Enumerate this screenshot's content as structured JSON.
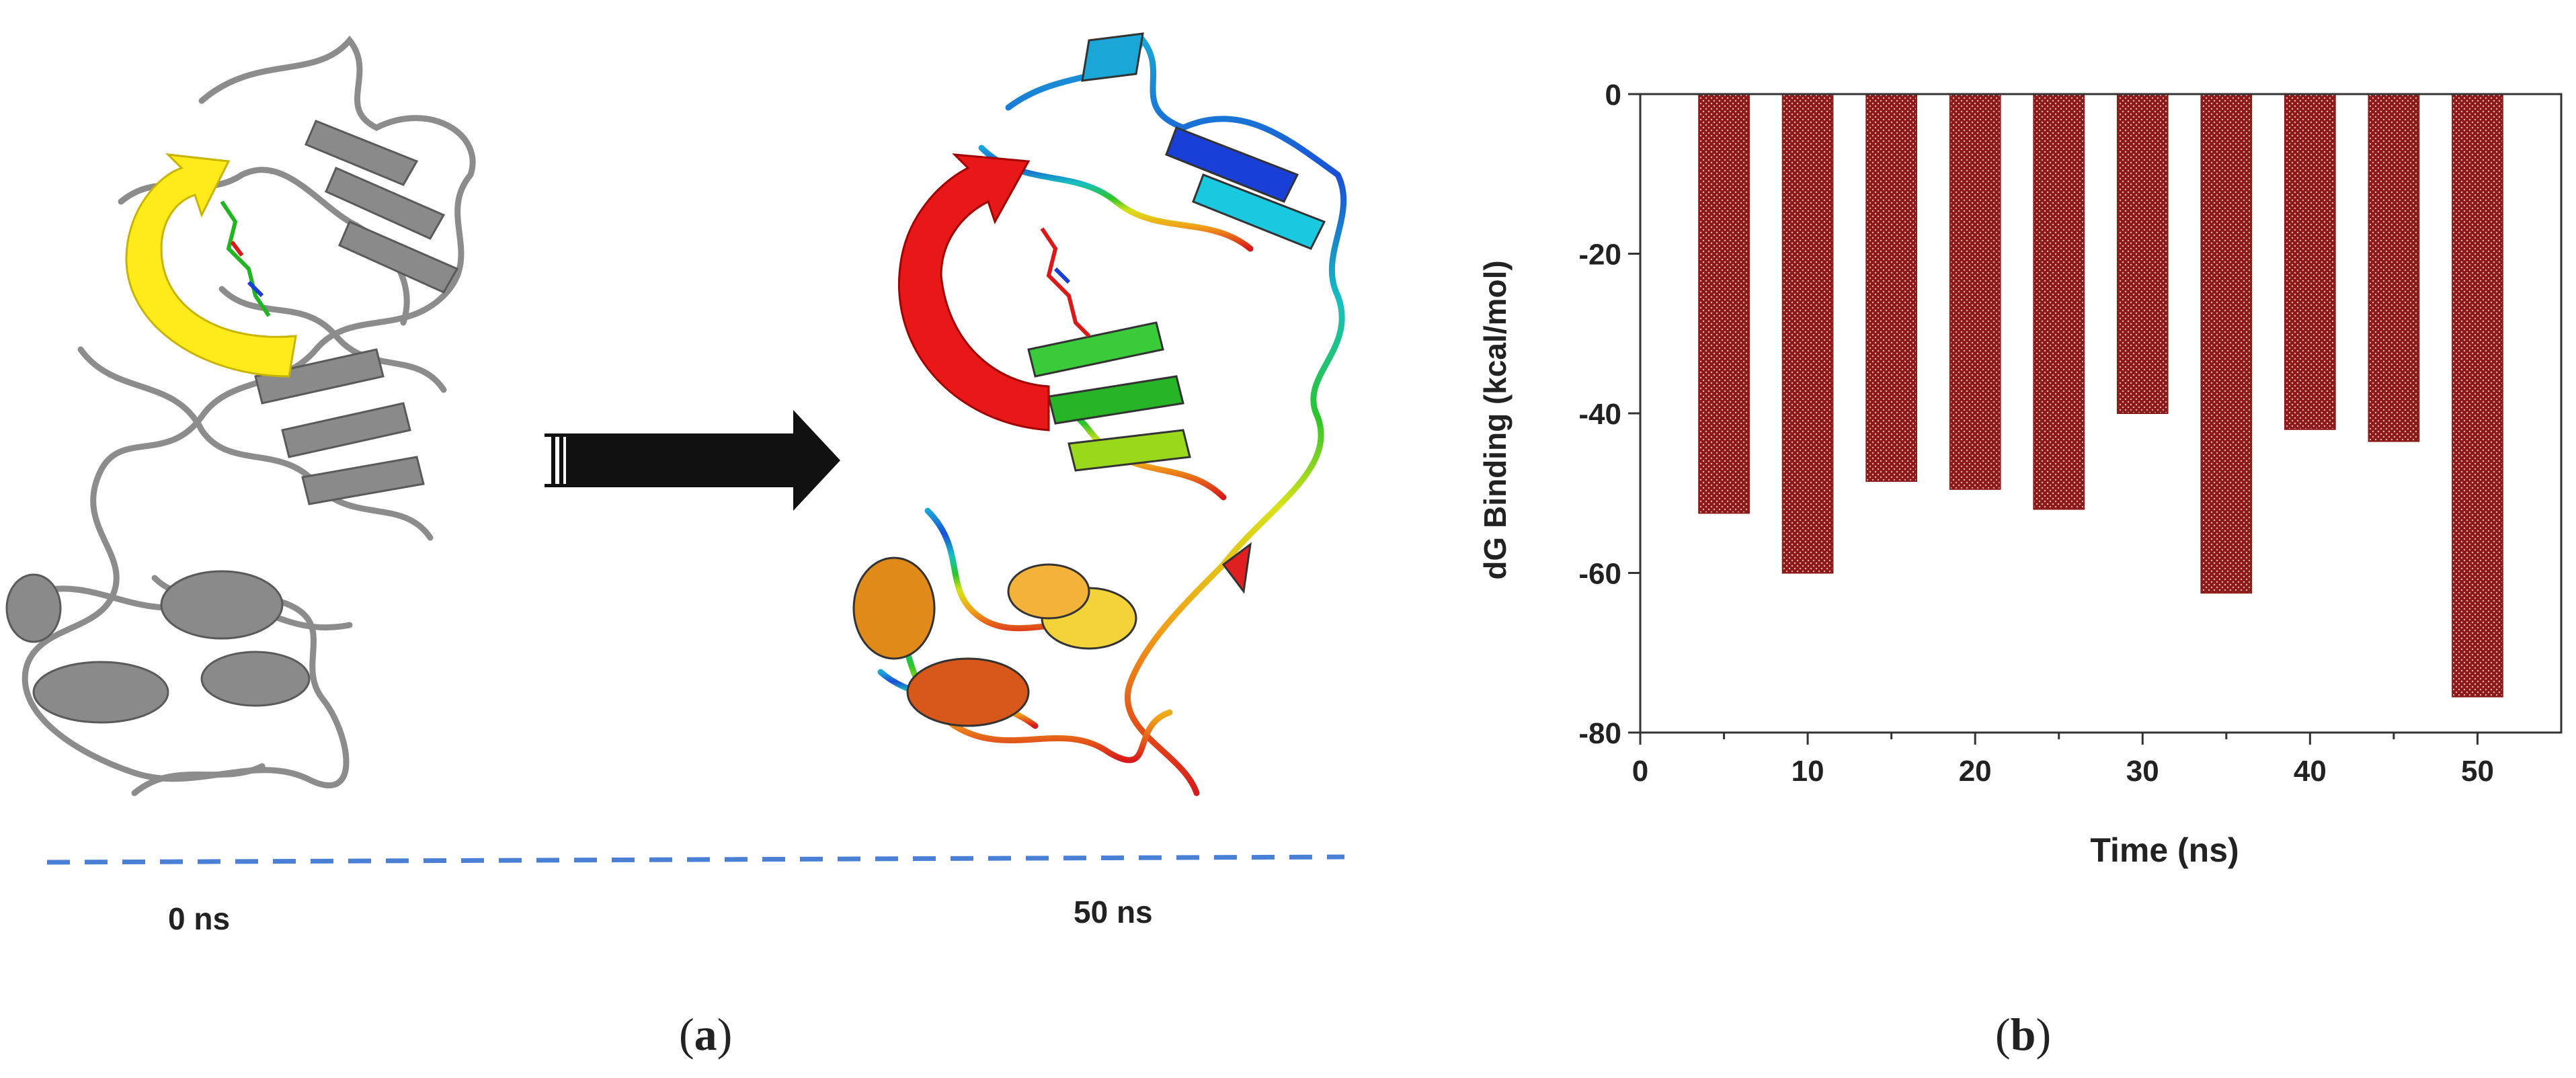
{
  "panel_a": {
    "label_open": "(",
    "label_letter": "a",
    "label_close": ")",
    "time_start": "0 ns",
    "time_end": "50 ns",
    "colors": {
      "initial_structure": "#8c8c8c",
      "initial_arrow": "#ffeb1a",
      "final_arrow": "#e81818",
      "transition_arrow": "#111111",
      "timeline": "#4a7fd6"
    },
    "images": [
      "protein-structure-0ns",
      "protein-structure-50ns"
    ]
  },
  "panel_b": {
    "label_open": "(",
    "label_letter": "b",
    "label_close": ")"
  },
  "chart_data": {
    "type": "bar",
    "title": "",
    "xlabel": "Time (ns)",
    "ylabel": "dG Binding (kcal/mol)",
    "x": [
      5,
      10,
      15,
      20,
      25,
      30,
      35,
      40,
      45,
      50
    ],
    "values": [
      -52.5,
      -60,
      -48.5,
      -49.5,
      -52,
      -40,
      -62.5,
      -42,
      -43.5,
      -75.5
    ],
    "xlim": [
      0,
      55
    ],
    "ylim": [
      -80,
      0
    ],
    "xticks": [
      0,
      10,
      20,
      30,
      40,
      50
    ],
    "yticks": [
      0,
      -20,
      -40,
      -60,
      -80
    ],
    "grid": false,
    "legend": "none",
    "bar_color": "#8b1a1a"
  }
}
